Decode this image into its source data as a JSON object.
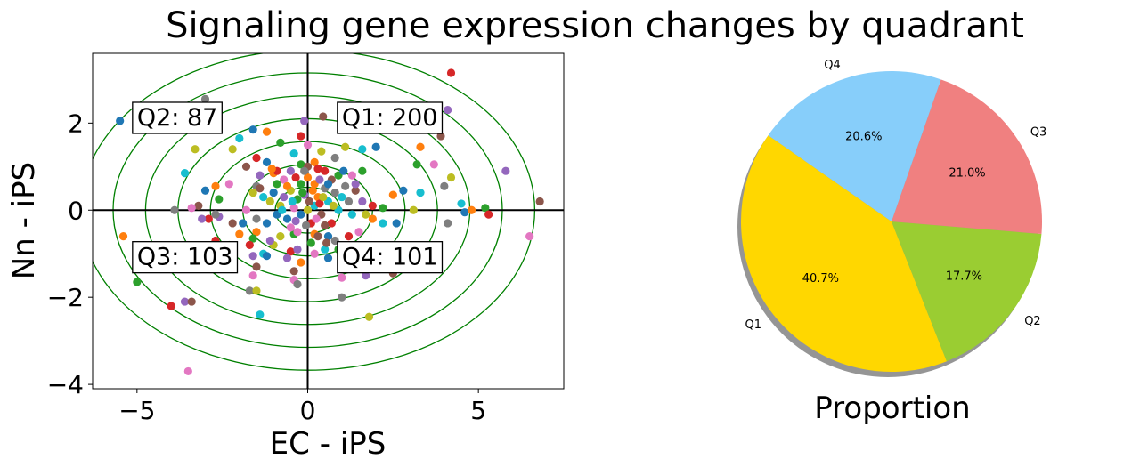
{
  "title": "Signaling gene expression changes by quadrant",
  "chart_data": [
    {
      "type": "scatter",
      "xlabel": "EC - iPS",
      "ylabel": "Nn - iPS",
      "xlim": [
        -6.3,
        7.5
      ],
      "ylim": [
        -4.1,
        3.6
      ],
      "xticks": [
        -5,
        0,
        5
      ],
      "xtick_labels": [
        "−5",
        "0",
        "5"
      ],
      "yticks": [
        -4,
        -2,
        0,
        2
      ],
      "ytick_labels": [
        "−4",
        "−2",
        "0",
        "2"
      ],
      "contour_color": "#008000",
      "contour_radii": [
        1,
        2,
        3,
        4,
        5,
        6,
        7
      ],
      "contour_aspect": 1.9,
      "quadrant_annotations": [
        {
          "label": "Q2: 87",
          "x": -5.0,
          "y": 2.15
        },
        {
          "label": "Q1: 200",
          "x": 1.0,
          "y": 2.15
        },
        {
          "label": "Q3: 103",
          "x": -5.0,
          "y": -1.05
        },
        {
          "label": "Q4: 101",
          "x": 1.0,
          "y": -1.05
        }
      ],
      "point_colors": [
        "#1f77b4",
        "#ff7f0e",
        "#2ca02c",
        "#d62728",
        "#9467bd",
        "#8c564b",
        "#e377c2",
        "#7f7f7f",
        "#bcbd22",
        "#17becf"
      ],
      "points": [
        [
          -5.5,
          2.05
        ],
        [
          -5.4,
          -0.6
        ],
        [
          -5.0,
          -1.65
        ],
        [
          -4.0,
          -2.2
        ],
        [
          -3.6,
          -2.1
        ],
        [
          -3.4,
          -2.1
        ],
        [
          -3.5,
          -3.7
        ],
        [
          -3.0,
          2.55
        ],
        [
          -3.3,
          1.4
        ],
        [
          -3.6,
          0.85
        ],
        [
          -3.0,
          0.45
        ],
        [
          -2.7,
          0.55
        ],
        [
          -2.6,
          0.25
        ],
        [
          -2.9,
          -0.2
        ],
        [
          -2.6,
          -0.15
        ],
        [
          -3.2,
          0.1
        ],
        [
          -3.4,
          0.05
        ],
        [
          -3.9,
          0.0
        ],
        [
          -2.2,
          1.4
        ],
        [
          -2.0,
          1.65
        ],
        [
          -1.6,
          1.85
        ],
        [
          -1.2,
          1.8
        ],
        [
          -0.8,
          1.55
        ],
        [
          -0.2,
          1.7
        ],
        [
          -0.1,
          2.05
        ],
        [
          0.45,
          2.15
        ],
        [
          0.0,
          1.5
        ],
        [
          0.8,
          1.2
        ],
        [
          1.1,
          1.45
        ],
        [
          1.6,
          1.4
        ],
        [
          2.0,
          1.45
        ],
        [
          3.3,
          1.45
        ],
        [
          3.2,
          1.05
        ],
        [
          4.2,
          3.15
        ],
        [
          4.1,
          2.3
        ],
        [
          3.9,
          1.7
        ],
        [
          3.7,
          1.05
        ],
        [
          4.0,
          0.55
        ],
        [
          4.2,
          0.75
        ],
        [
          4.5,
          0.15
        ],
        [
          4.6,
          -0.05
        ],
        [
          4.8,
          0.0
        ],
        [
          5.2,
          0.05
        ],
        [
          5.3,
          -0.1
        ],
        [
          5.8,
          0.9
        ],
        [
          6.8,
          0.2
        ],
        [
          6.5,
          -0.6
        ],
        [
          4.1,
          -0.3
        ],
        [
          3.1,
          0.0
        ],
        [
          3.3,
          0.4
        ],
        [
          2.8,
          0.45
        ],
        [
          2.5,
          0.35
        ],
        [
          2.2,
          0.05
        ],
        [
          1.9,
          0.1
        ],
        [
          1.6,
          0.2
        ],
        [
          1.4,
          0.45
        ],
        [
          1.3,
          0.8
        ],
        [
          1.1,
          0.55
        ],
        [
          1.7,
          -0.1
        ],
        [
          2.2,
          -0.3
        ],
        [
          2.6,
          -0.3
        ],
        [
          1.9,
          -0.2
        ],
        [
          1.0,
          -1.05
        ],
        [
          1.6,
          -1.2
        ],
        [
          1.7,
          -1.5
        ],
        [
          2.5,
          -1.45
        ],
        [
          1.0,
          -1.55
        ],
        [
          1.0,
          -2.0
        ],
        [
          1.8,
          -2.45
        ],
        [
          0.5,
          -0.9
        ],
        [
          0.6,
          -0.6
        ],
        [
          0.2,
          -0.55
        ],
        [
          -0.4,
          -0.55
        ],
        [
          -0.5,
          -0.95
        ],
        [
          -0.6,
          -1.1
        ],
        [
          -0.4,
          -1.4
        ],
        [
          -0.4,
          -1.6
        ],
        [
          -0.3,
          -1.7
        ],
        [
          -1.0,
          -0.8
        ],
        [
          -1.3,
          -1.0
        ],
        [
          -1.2,
          -1.05
        ],
        [
          -1.5,
          -0.5
        ],
        [
          -1.6,
          -0.65
        ],
        [
          -1.7,
          -0.8
        ],
        [
          -1.6,
          -1.05
        ],
        [
          -1.5,
          -1.3
        ],
        [
          -1.6,
          -1.5
        ],
        [
          -1.7,
          -1.85
        ],
        [
          -1.5,
          -1.85
        ],
        [
          -1.4,
          -2.4
        ],
        [
          -1.9,
          -0.3
        ],
        [
          -2.0,
          -0.55
        ],
        [
          -2.3,
          -0.8
        ],
        [
          -2.7,
          -0.7
        ],
        [
          -3.1,
          -0.2
        ],
        [
          -2.2,
          -0.3
        ],
        [
          -1.8,
          0.0
        ],
        [
          -1.5,
          0.55
        ],
        [
          -1.6,
          0.4
        ],
        [
          -1.3,
          0.3
        ],
        [
          -1.2,
          1.1
        ],
        [
          -1.0,
          0.85
        ],
        [
          -0.9,
          0.6
        ],
        [
          -1.5,
          1.2
        ],
        [
          -1.4,
          0.8
        ],
        [
          -1.8,
          1.0
        ],
        [
          -2.3,
          0.6
        ],
        [
          -2.7,
          -0.1
        ],
        [
          0.0,
          0.0
        ],
        [
          0.2,
          0.1
        ],
        [
          -0.2,
          -0.1
        ],
        [
          0.3,
          0.3
        ],
        [
          -0.3,
          0.25
        ],
        [
          0.1,
          -0.3
        ],
        [
          -0.1,
          0.35
        ],
        [
          0.4,
          -0.1
        ],
        [
          -0.4,
          0.05
        ],
        [
          0.5,
          0.5
        ],
        [
          -0.5,
          0.45
        ],
        [
          0.6,
          0.2
        ],
        [
          -0.6,
          -0.2
        ],
        [
          0.2,
          0.6
        ],
        [
          -0.2,
          0.6
        ],
        [
          0.7,
          -0.3
        ],
        [
          -0.7,
          0.3
        ],
        [
          0.3,
          -0.6
        ],
        [
          -0.3,
          -0.5
        ],
        [
          0.8,
          0.4
        ],
        [
          -0.8,
          0.1
        ],
        [
          0.9,
          0.0
        ],
        [
          -0.9,
          -0.1
        ],
        [
          0.0,
          0.75
        ],
        [
          0.1,
          -0.75
        ],
        [
          0.5,
          0.9
        ],
        [
          -0.5,
          0.9
        ],
        [
          0.5,
          -0.35
        ],
        [
          -0.5,
          -0.4
        ],
        [
          1.2,
          0.2
        ],
        [
          -1.1,
          0.2
        ],
        [
          1.3,
          -0.1
        ],
        [
          -1.2,
          -0.3
        ],
        [
          0.2,
          1.1
        ],
        [
          -0.2,
          1.05
        ],
        [
          0.3,
          0.95
        ],
        [
          -0.3,
          -0.9
        ],
        [
          0.7,
          0.7
        ],
        [
          -0.7,
          0.7
        ],
        [
          0.8,
          -0.7
        ],
        [
          -0.8,
          -0.6
        ],
        [
          1.0,
          0.3
        ],
        [
          -1.0,
          0.4
        ],
        [
          0.15,
          0.45
        ],
        [
          -0.15,
          0.4
        ],
        [
          0.35,
          0.15
        ],
        [
          -0.35,
          -0.25
        ],
        [
          0.05,
          0.2
        ],
        [
          0.25,
          -0.2
        ],
        [
          -0.05,
          -0.35
        ],
        [
          0.45,
          0.3
        ],
        [
          -0.45,
          0.2
        ],
        [
          0.6,
          0.6
        ],
        [
          -0.6,
          0.55
        ],
        [
          0.9,
          0.8
        ],
        [
          -0.9,
          0.9
        ],
        [
          1.4,
          0.6
        ],
        [
          -1.4,
          0.5
        ],
        [
          1.5,
          -0.5
        ],
        [
          -1.5,
          -0.2
        ],
        [
          0.4,
          1.35
        ],
        [
          -0.4,
          1.3
        ],
        [
          0.6,
          -1.1
        ],
        [
          -0.2,
          -1.2
        ],
        [
          0.9,
          -0.9
        ],
        [
          1.2,
          -0.6
        ],
        [
          -1.1,
          -0.7
        ],
        [
          0.0,
          1.0
        ],
        [
          0.2,
          -1.0
        ],
        [
          -0.1,
          0.9
        ],
        [
          0.75,
          0.1
        ],
        [
          -0.75,
          0.0
        ],
        [
          1.05,
          0.9
        ],
        [
          -1.05,
          0.95
        ],
        [
          1.6,
          0.9
        ],
        [
          -0.35,
          0.75
        ],
        [
          0.35,
          0.7
        ],
        [
          0.55,
          -0.75
        ]
      ]
    },
    {
      "type": "pie",
      "xlabel": "Proportion",
      "startangle_deg": 145,
      "slices": [
        {
          "label": "Q1",
          "value": 40.7,
          "pct_label": "40.7%",
          "color": "#FFD700"
        },
        {
          "label": "Q2",
          "value": 17.7,
          "pct_label": "17.7%",
          "color": "#9ACD32"
        },
        {
          "label": "Q3",
          "value": 21.0,
          "pct_label": "21.0%",
          "color": "#F08080"
        },
        {
          "label": "Q4",
          "value": 20.6,
          "pct_label": "20.6%",
          "color": "#87CEFA"
        }
      ],
      "shadow": true
    }
  ]
}
